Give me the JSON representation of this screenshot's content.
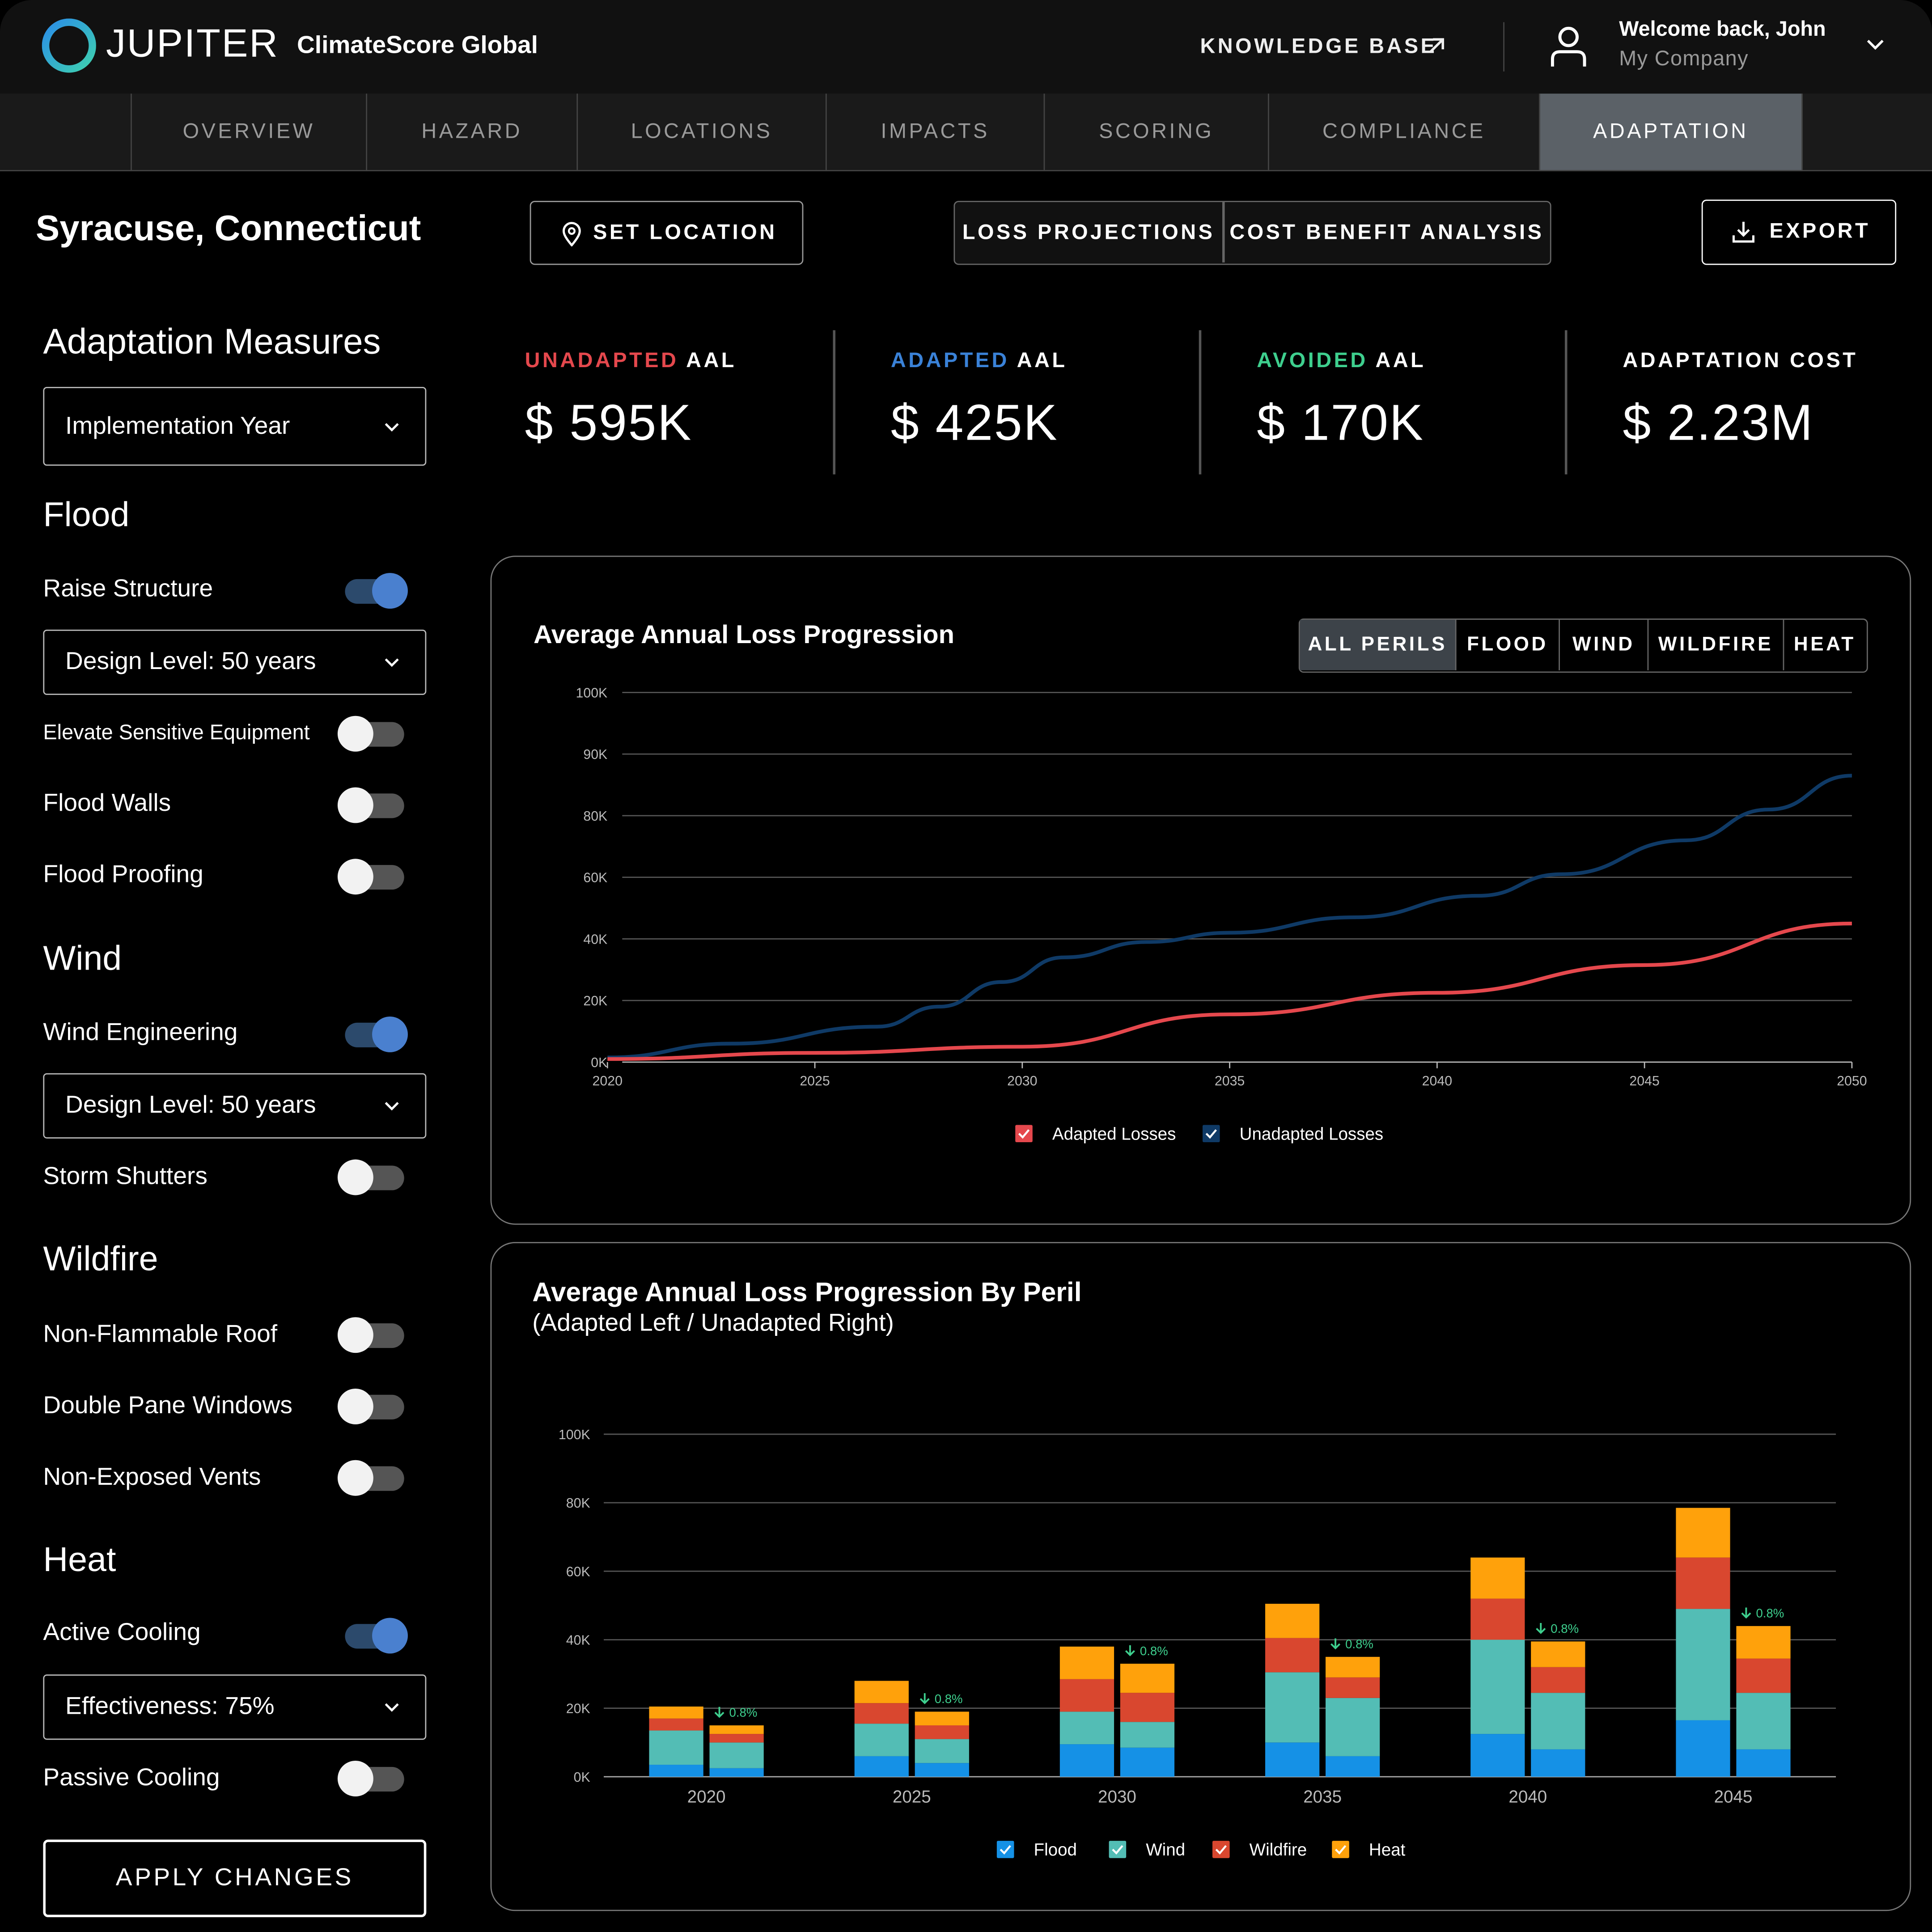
{
  "header": {
    "logo_text": "JUPITER",
    "product_name": "ClimateScore Global",
    "knowledge_base_label": "KNOWLEDGE BASE",
    "welcome": "Welcome back, John",
    "company": "My Company"
  },
  "nav": {
    "tabs": [
      {
        "label": "OVERVIEW",
        "active": false
      },
      {
        "label": "HAZARD",
        "active": false
      },
      {
        "label": "LOCATIONS",
        "active": false
      },
      {
        "label": "IMPACTS",
        "active": false
      },
      {
        "label": "SCORING",
        "active": false
      },
      {
        "label": "COMPLIANCE",
        "active": false
      },
      {
        "label": "ADAPTATION",
        "active": true
      }
    ]
  },
  "toolbar": {
    "location_title": "Syracuse, Connecticut",
    "set_location_label": "SET LOCATION",
    "views": [
      "LOSS PROJECTIONS",
      "COST BENEFIT ANALYSIS"
    ],
    "export_label": "EXPORT"
  },
  "sidebar": {
    "title": "Adaptation Measures",
    "year_dropdown": "Implementation Year",
    "flood": {
      "heading": "Flood",
      "raise_structure": "Raise Structure",
      "raise_structure_on": true,
      "raise_design_level": "Design Level: 50 years",
      "elevate_equipment": "Elevate Sensitive Equipment",
      "flood_walls": "Flood Walls",
      "flood_proofing": "Flood Proofing"
    },
    "wind": {
      "heading": "Wind",
      "wind_engineering": "Wind Engineering",
      "wind_engineering_on": true,
      "wind_design_level": "Design Level: 50 years",
      "storm_shutters": "Storm Shutters"
    },
    "wildfire": {
      "heading": "Wildfire",
      "non_flammable_roof": "Non-Flammable Roof",
      "double_pane_windows": "Double Pane Windows",
      "non_exposed_vents": "Non-Exposed Vents"
    },
    "heat": {
      "heading": "Heat",
      "active_cooling": "Active Cooling",
      "active_cooling_on": true,
      "effectiveness": "Effectiveness: 75%",
      "passive_cooling": "Passive Cooling"
    },
    "apply_label": "APPLY CHANGES"
  },
  "kpis": [
    {
      "prefix": "UNADAPTED",
      "suffix": " AAL",
      "prefix_color": "#e5484d",
      "value": "$ 595K"
    },
    {
      "prefix": "ADAPTED",
      "suffix": " AAL",
      "prefix_color": "#3a82d8",
      "value": "$ 425K"
    },
    {
      "prefix": "AVOIDED",
      "suffix": " AAL",
      "prefix_color": "#3ecf8e",
      "value": "$ 170K"
    },
    {
      "prefix": "",
      "suffix": "ADAPTATION COST",
      "prefix_color": "#ffffff",
      "value": "$ 2.23M"
    }
  ],
  "line_panel": {
    "title": "Average Annual Loss Progression",
    "perils": [
      "ALL PERILS",
      "FLOOD",
      "WIND",
      "WILDFIRE",
      "HEAT"
    ],
    "active_peril": "ALL PERILS"
  },
  "bar_panel": {
    "title": "Average Annual Loss Progression By Peril",
    "subtitle": "(Adapted Left / Unadapted Right)"
  },
  "chart_data": [
    {
      "type": "line",
      "title": "Average Annual Loss Progression",
      "x": [
        2020,
        2023,
        2026.5,
        2028,
        2029.5,
        2031,
        2033,
        2035,
        2038,
        2041,
        2043,
        2046,
        2048,
        2050
      ],
      "y_ticks": [
        "0K",
        "20K",
        "40K",
        "60K",
        "80K",
        "90K",
        "100K"
      ],
      "x_ticks": [
        "2020",
        "2025",
        "2030",
        "2035",
        "2040",
        "2045",
        "2050"
      ],
      "series": [
        {
          "name": "Unadapted Losses",
          "color": "#0f3a66",
          "x": [
            2020,
            2023,
            2026.5,
            2028,
            2029.5,
            2031,
            2033,
            2035,
            2038,
            2041,
            2043,
            2046,
            2048,
            2050
          ],
          "y": [
            1.5,
            6,
            11.5,
            18,
            26,
            34,
            39,
            42,
            47,
            54,
            61,
            72,
            81,
            86.5
          ]
        },
        {
          "name": "Adapted Losses",
          "color": "#e5484d",
          "x": [
            2020,
            2025,
            2030,
            2035,
            2040,
            2045,
            2050
          ],
          "y": [
            1,
            3,
            5,
            15.5,
            22.5,
            31.5,
            45
          ]
        }
      ]
    },
    {
      "type": "bar",
      "title": "Average Annual Loss Progression By Peril",
      "categories": [
        "2020",
        "2025",
        "2030",
        "2035",
        "2040",
        "2045"
      ],
      "ylim": [
        0,
        100
      ],
      "y_ticks": [
        "0K",
        "20K",
        "40K",
        "60K",
        "80K",
        "100K"
      ],
      "perils": [
        {
          "name": "Flood",
          "color": "#1591e6"
        },
        {
          "name": "Wind",
          "color": "#53bdb5"
        },
        {
          "name": "Wildfire",
          "color": "#d9472f"
        },
        {
          "name": "Heat",
          "color": "#ffa10b"
        }
      ],
      "adapted": [
        [
          3.5,
          10,
          3.5,
          3.5
        ],
        [
          6,
          9.5,
          6,
          6.5
        ],
        [
          9.5,
          9.5,
          9.5,
          9.5
        ],
        [
          10,
          20.5,
          10,
          10
        ],
        [
          12.5,
          27.5,
          12,
          12
        ],
        [
          16.5,
          32.5,
          15,
          14.5
        ]
      ],
      "unadapted": [
        [
          2.5,
          7.5,
          2.5,
          2.5
        ],
        [
          4,
          7,
          4,
          4
        ],
        [
          8.5,
          7.5,
          8.5,
          8.5
        ],
        [
          6,
          17,
          6,
          6
        ],
        [
          8,
          16.5,
          7.5,
          7.5
        ],
        [
          8,
          16.5,
          10,
          9.5
        ]
      ],
      "change_labels": [
        "0.8%",
        "0.8%",
        "0.8%",
        "0.8%",
        "0.8%",
        "0.8%"
      ]
    }
  ]
}
